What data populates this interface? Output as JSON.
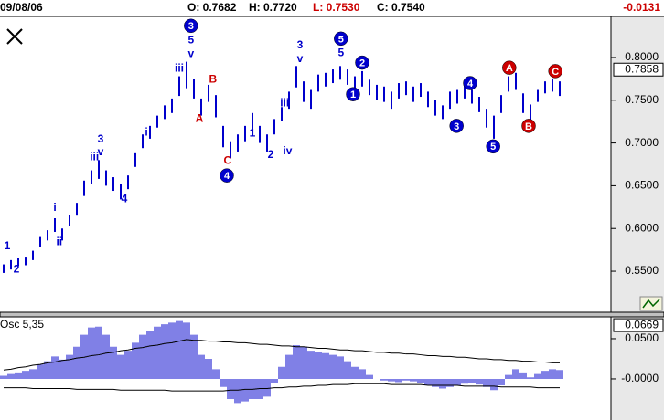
{
  "chart_data": [
    {
      "type": "ohlc",
      "header": [
        {
          "text": "09/08/06",
          "color": "#000000"
        },
        {
          "text": "O: 0.7682",
          "color": "#000000"
        },
        {
          "text": "H: 0.7720",
          "color": "#000000"
        },
        {
          "text": "L: 0.7530",
          "color": "#cc0000"
        },
        {
          "text": "C: 0.7540",
          "color": "#000000"
        },
        {
          "text": "-0.0131",
          "color": "#cc0000"
        }
      ],
      "last_label": {
        "value": 0.7858,
        "label": "0.7858"
      },
      "color": "#0000cc",
      "ylim": [
        0.502,
        0.848
      ],
      "yticks": [
        {
          "value": 0.8,
          "label": "0.8000"
        },
        {
          "value": 0.75,
          "label": "0.7500"
        },
        {
          "value": 0.7,
          "label": "0.7000"
        },
        {
          "value": 0.65,
          "label": "0.6500"
        },
        {
          "value": 0.6,
          "label": "0.6000"
        },
        {
          "value": 0.55,
          "label": "0.5500"
        }
      ],
      "high": [
        0.558,
        0.563,
        0.565,
        0.566,
        0.574,
        0.59,
        0.598,
        0.612,
        0.6,
        0.616,
        0.63,
        0.656,
        0.668,
        0.68,
        0.668,
        0.66,
        0.652,
        0.662,
        0.688,
        0.71,
        0.72,
        0.732,
        0.744,
        0.752,
        0.778,
        0.795,
        0.775,
        0.752,
        0.768,
        0.756,
        0.72,
        0.702,
        0.71,
        0.72,
        0.735,
        0.72,
        0.71,
        0.728,
        0.742,
        0.76,
        0.79,
        0.772,
        0.762,
        0.78,
        0.782,
        0.786,
        0.79,
        0.786,
        0.778,
        0.784,
        0.774,
        0.768,
        0.766,
        0.76,
        0.77,
        0.772,
        0.766,
        0.77,
        0.76,
        0.75,
        0.744,
        0.76,
        0.762,
        0.768,
        0.762,
        0.754,
        0.74,
        0.732,
        0.756,
        0.778,
        0.782,
        0.758,
        0.745,
        0.762,
        0.772,
        0.775,
        0.772
      ],
      "low": [
        0.548,
        0.552,
        0.556,
        0.557,
        0.563,
        0.578,
        0.586,
        0.596,
        0.586,
        0.603,
        0.615,
        0.638,
        0.652,
        0.658,
        0.65,
        0.644,
        0.634,
        0.646,
        0.672,
        0.694,
        0.705,
        0.718,
        0.728,
        0.735,
        0.755,
        0.764,
        0.752,
        0.732,
        0.748,
        0.73,
        0.695,
        0.682,
        0.69,
        0.702,
        0.712,
        0.7,
        0.69,
        0.71,
        0.726,
        0.74,
        0.765,
        0.748,
        0.74,
        0.76,
        0.766,
        0.77,
        0.774,
        0.768,
        0.758,
        0.766,
        0.756,
        0.75,
        0.748,
        0.74,
        0.752,
        0.756,
        0.748,
        0.754,
        0.742,
        0.732,
        0.728,
        0.74,
        0.746,
        0.752,
        0.746,
        0.736,
        0.718,
        0.705,
        0.735,
        0.76,
        0.762,
        0.735,
        0.725,
        0.748,
        0.758,
        0.76,
        0.755
      ],
      "annotations": [
        {
          "text": "1",
          "bar": 0.5,
          "price": 0.579,
          "color": "#0000cc",
          "circle": false
        },
        {
          "text": "2",
          "bar": 1.75,
          "price": 0.552,
          "color": "#0000cc",
          "circle": false
        },
        {
          "text": "i",
          "bar": 7,
          "price": 0.624,
          "color": "#0000cc",
          "circle": false
        },
        {
          "text": "ii",
          "bar": 7.6,
          "price": 0.584,
          "color": "#0000cc",
          "circle": false
        },
        {
          "text": "3",
          "bar": 13.25,
          "price": 0.704,
          "color": "#0000cc",
          "circle": false
        },
        {
          "text": "v",
          "bar": 13.25,
          "price": 0.689,
          "color": "#0000cc",
          "circle": false
        },
        {
          "text": "iii",
          "bar": 12.4,
          "price": 0.683,
          "color": "#0000cc",
          "circle": false
        },
        {
          "text": "4",
          "bar": 16.5,
          "price": 0.634,
          "color": "#0000cc",
          "circle": false
        },
        {
          "text": "i",
          "bar": 19.5,
          "price": 0.712,
          "color": "#0000cc",
          "circle": false
        },
        {
          "text": "iii",
          "bar": 24,
          "price": 0.787,
          "color": "#0000cc",
          "circle": false
        },
        {
          "text": "5",
          "bar": 25.6,
          "price": 0.82,
          "color": "#0000cc",
          "circle": false
        },
        {
          "text": "v",
          "bar": 25.6,
          "price": 0.804,
          "color": "#0000cc",
          "circle": false
        },
        {
          "text": "3",
          "bar": 25.6,
          "price": 0.837,
          "color": "#0000cc",
          "circle": true
        },
        {
          "text": "A",
          "bar": 26.75,
          "price": 0.728,
          "color": "#cc0000",
          "circle": false
        },
        {
          "text": "B",
          "bar": 28.6,
          "price": 0.774,
          "color": "#cc0000",
          "circle": false
        },
        {
          "text": "C",
          "bar": 30.6,
          "price": 0.679,
          "color": "#cc0000",
          "circle": false
        },
        {
          "text": "4",
          "bar": 30.5,
          "price": 0.662,
          "color": "#0000cc",
          "circle": true
        },
        {
          "text": "1",
          "bar": 34,
          "price": 0.711,
          "color": "#0000cc",
          "circle": false
        },
        {
          "text": "2",
          "bar": 36.5,
          "price": 0.686,
          "color": "#0000cc",
          "circle": false
        },
        {
          "text": "iii",
          "bar": 38.4,
          "price": 0.746,
          "color": "#0000cc",
          "circle": false
        },
        {
          "text": "iv",
          "bar": 38.8,
          "price": 0.69,
          "color": "#0000cc",
          "circle": false
        },
        {
          "text": "3",
          "bar": 40.5,
          "price": 0.814,
          "color": "#0000cc",
          "circle": false
        },
        {
          "text": "v",
          "bar": 40.5,
          "price": 0.798,
          "color": "#0000cc",
          "circle": false
        },
        {
          "text": "5",
          "bar": 46.1,
          "price": 0.805,
          "color": "#0000cc",
          "circle": false
        },
        {
          "text": "5",
          "bar": 46.1,
          "price": 0.822,
          "color": "#0000cc",
          "circle": true
        },
        {
          "text": "2",
          "bar": 49,
          "price": 0.794,
          "color": "#0000cc",
          "circle": true
        },
        {
          "text": "1",
          "bar": 47.75,
          "price": 0.757,
          "color": "#0000cc",
          "circle": true
        },
        {
          "text": "3",
          "bar": 61.9,
          "price": 0.72,
          "color": "#0000cc",
          "circle": true
        },
        {
          "text": "4",
          "bar": 63.75,
          "price": 0.77,
          "color": "#0000cc",
          "circle": true
        },
        {
          "text": "5",
          "bar": 66.9,
          "price": 0.696,
          "color": "#0000cc",
          "circle": true
        },
        {
          "text": "A",
          "bar": 69.1,
          "price": 0.788,
          "color": "#cc0000",
          "circle": true
        },
        {
          "text": "B",
          "bar": 71.75,
          "price": 0.72,
          "color": "#cc0000",
          "circle": true
        },
        {
          "text": "C",
          "bar": 75.4,
          "price": 0.784,
          "color": "#cc0000",
          "circle": true
        }
      ]
    },
    {
      "type": "oscillator",
      "title": "Osc 5,35",
      "last_label": {
        "value": 0.0669,
        "label": "0.0669"
      },
      "color": "#0000cc",
      "band_color": "#000000",
      "ylim": [
        -0.0455,
        0.0761
      ],
      "yticks": [
        {
          "value": 0.05,
          "label": "0.0500"
        },
        {
          "value": 0,
          "label": "-0.0000"
        }
      ],
      "values": [
        0.004,
        0.006,
        0.008,
        0.01,
        0.012,
        0.018,
        0.022,
        0.028,
        0.024,
        0.03,
        0.04,
        0.055,
        0.064,
        0.065,
        0.055,
        0.04,
        0.03,
        0.035,
        0.045,
        0.055,
        0.06,
        0.065,
        0.068,
        0.07,
        0.072,
        0.07,
        0.055,
        0.03,
        0.025,
        0.012,
        -0.01,
        -0.025,
        -0.03,
        -0.028,
        -0.025,
        -0.025,
        -0.022,
        -0.005,
        0.015,
        0.03,
        0.042,
        0.04,
        0.035,
        0.034,
        0.032,
        0.03,
        0.028,
        0.022,
        0.015,
        0.012,
        0.005,
        0.0,
        -0.002,
        -0.003,
        -0.004,
        -0.002,
        -0.003,
        -0.005,
        -0.008,
        -0.01,
        -0.012,
        -0.01,
        -0.008,
        -0.006,
        -0.005,
        -0.007,
        -0.01,
        -0.014,
        -0.008,
        0.005,
        0.012,
        0.008,
        0.002,
        0.006,
        0.01,
        0.012,
        0.011
      ],
      "upper": [
        0.011,
        0.012,
        0.014,
        0.015,
        0.017,
        0.018,
        0.02,
        0.021,
        0.023,
        0.024,
        0.026,
        0.027,
        0.029,
        0.03,
        0.032,
        0.033,
        0.035,
        0.036,
        0.038,
        0.039,
        0.041,
        0.042,
        0.044,
        0.045,
        0.047,
        0.049,
        0.048,
        0.048,
        0.047,
        0.047,
        0.046,
        0.046,
        0.045,
        0.045,
        0.044,
        0.043,
        0.043,
        0.042,
        0.041,
        0.041,
        0.04,
        0.04,
        0.039,
        0.038,
        0.038,
        0.037,
        0.036,
        0.036,
        0.035,
        0.035,
        0.034,
        0.033,
        0.033,
        0.032,
        0.032,
        0.031,
        0.031,
        0.03,
        0.029,
        0.029,
        0.028,
        0.028,
        0.027,
        0.027,
        0.026,
        0.025,
        0.025,
        0.024,
        0.024,
        0.023,
        0.023,
        0.022,
        0.022,
        0.021,
        0.021,
        0.02,
        0.02
      ],
      "lower": [
        -0.011,
        -0.011,
        -0.011,
        -0.011,
        -0.012,
        -0.012,
        -0.012,
        -0.012,
        -0.012,
        -0.012,
        -0.013,
        -0.013,
        -0.013,
        -0.013,
        -0.013,
        -0.013,
        -0.014,
        -0.014,
        -0.014,
        -0.014,
        -0.014,
        -0.014,
        -0.014,
        -0.015,
        -0.015,
        -0.015,
        -0.015,
        -0.015,
        -0.015,
        -0.015,
        -0.015,
        -0.014,
        -0.014,
        -0.013,
        -0.013,
        -0.012,
        -0.012,
        -0.011,
        -0.011,
        -0.01,
        -0.01,
        -0.009,
        -0.009,
        -0.008,
        -0.008,
        -0.007,
        -0.007,
        -0.007,
        -0.006,
        -0.006,
        -0.006,
        -0.006,
        -0.006,
        -0.007,
        -0.007,
        -0.007,
        -0.007,
        -0.007,
        -0.008,
        -0.008,
        -0.008,
        -0.008,
        -0.008,
        -0.009,
        -0.009,
        -0.009,
        -0.009,
        -0.009,
        -0.01,
        -0.01,
        -0.01,
        -0.01,
        -0.01,
        -0.011,
        -0.011,
        -0.011,
        -0.011
      ]
    }
  ]
}
